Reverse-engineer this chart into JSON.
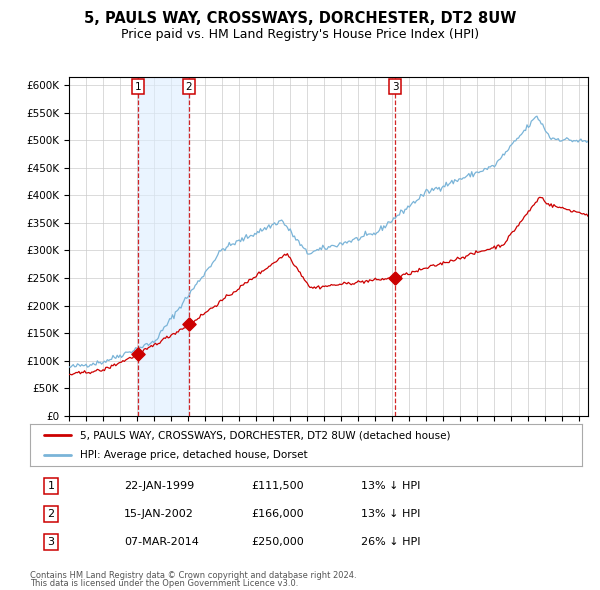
{
  "title": "5, PAULS WAY, CROSSWAYS, DORCHESTER, DT2 8UW",
  "subtitle": "Price paid vs. HM Land Registry's House Price Index (HPI)",
  "title_fontsize": 10.5,
  "subtitle_fontsize": 9,
  "ylim": [
    0,
    600000
  ],
  "yticks": [
    0,
    50000,
    100000,
    150000,
    200000,
    250000,
    300000,
    350000,
    400000,
    450000,
    500000,
    550000,
    600000
  ],
  "xlim_start": 1995.0,
  "xlim_end": 2025.5,
  "hpi_color": "#7ab4d8",
  "price_color": "#cc0000",
  "dashed_color": "#cc0000",
  "shade_color": "#ddeeff",
  "grid_color": "#cccccc",
  "legend_label_price": "5, PAULS WAY, CROSSWAYS, DORCHESTER, DT2 8UW (detached house)",
  "legend_label_hpi": "HPI: Average price, detached house, Dorset",
  "transactions": [
    {
      "num": 1,
      "date": "22-JAN-1999",
      "price": 111500,
      "price_str": "£111,500",
      "pct": "13%",
      "year": 1999.05
    },
    {
      "num": 2,
      "date": "15-JAN-2002",
      "price": 166000,
      "price_str": "£166,000",
      "pct": "13%",
      "year": 2002.05
    },
    {
      "num": 3,
      "date": "07-MAR-2014",
      "price": 250000,
      "price_str": "£250,000",
      "pct": "26%",
      "year": 2014.18
    }
  ],
  "footer_line1": "Contains HM Land Registry data © Crown copyright and database right 2024.",
  "footer_line2": "This data is licensed under the Open Government Licence v3.0."
}
